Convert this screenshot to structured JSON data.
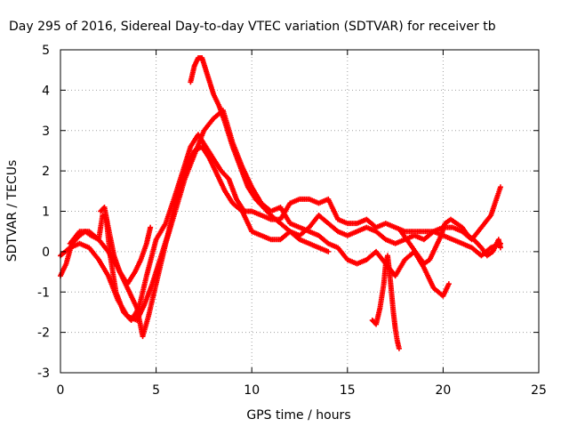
{
  "chart_data": {
    "type": "scatter",
    "title": "Day 295 of 2016, Sidereal Day-to-day VTEC variation (SDTVAR) for receiver tb",
    "xlabel": "GPS time / hours",
    "ylabel": "SDTVAR / TECUs",
    "xlim": [
      0,
      25
    ],
    "ylim": [
      -3,
      5
    ],
    "xticks": [
      "0",
      "5",
      "10",
      "15",
      "20",
      "25"
    ],
    "yticks": [
      "-3",
      "-2",
      "-1",
      "0",
      "1",
      "2",
      "3",
      "4",
      "5"
    ],
    "grid": true,
    "marker": "+",
    "color": "#ff0000",
    "series": [
      {
        "x": [
          0.0,
          0.3,
          0.6,
          1.0,
          1.3,
          1.6,
          2.0,
          2.2,
          2.4,
          2.6,
          2.9,
          3.3,
          3.7,
          4.1,
          4.5,
          5.0,
          5.5,
          6.0,
          6.4,
          6.8,
          7.2,
          7.6,
          8.0,
          8.4,
          8.8,
          9.2,
          9.6,
          10.0,
          10.5,
          11.0,
          11.5,
          12.0,
          12.5,
          13.0,
          13.5,
          14.0,
          14.5,
          15.0,
          15.5,
          16.0,
          16.5,
          17.0,
          17.5,
          18.0,
          18.5,
          19.0,
          19.5,
          20.0,
          20.5,
          21.0,
          21.5,
          22.0,
          22.5,
          23.0
        ],
        "y": [
          -0.6,
          -0.3,
          0.2,
          0.4,
          0.5,
          0.4,
          0.3,
          0.9,
          0.8,
          -0.1,
          -1.0,
          -1.5,
          -1.7,
          -1.4,
          -0.6,
          0.3,
          0.7,
          1.4,
          2.0,
          2.6,
          2.9,
          2.6,
          2.3,
          2.0,
          1.8,
          1.3,
          1.0,
          1.0,
          0.9,
          0.8,
          0.8,
          1.2,
          1.3,
          1.3,
          1.2,
          1.3,
          0.8,
          0.7,
          0.7,
          0.8,
          0.6,
          0.7,
          0.6,
          0.5,
          0.5,
          0.5,
          0.5,
          0.6,
          0.6,
          0.5,
          0.3,
          0.6,
          0.9,
          1.6
        ]
      },
      {
        "x": [
          0.0,
          0.5,
          1.0,
          1.5,
          2.0,
          2.5,
          3.0,
          3.5,
          4.0,
          4.4,
          4.8,
          5.2,
          5.6,
          6.0,
          6.5,
          7.0,
          7.4,
          7.8,
          8.2,
          8.6,
          9.0,
          9.5,
          10.0,
          10.5,
          11.0,
          11.5,
          12.0,
          12.5,
          13.0,
          13.5,
          14.0,
          14.5,
          15.0,
          15.5,
          16.0,
          16.5,
          17.0,
          17.5,
          18.0,
          18.5,
          19.0,
          19.5,
          20.0,
          20.5,
          21.0,
          21.5,
          22.0,
          22.5,
          23.0
        ],
        "y": [
          -0.1,
          0.1,
          0.2,
          0.1,
          -0.2,
          -0.6,
          -1.2,
          -1.6,
          -1.7,
          -1.3,
          -0.8,
          -0.2,
          0.4,
          1.2,
          2.0,
          2.5,
          2.6,
          2.3,
          1.9,
          1.5,
          1.2,
          1.0,
          0.5,
          0.4,
          0.3,
          0.3,
          0.5,
          0.4,
          0.6,
          0.9,
          0.7,
          0.5,
          0.4,
          0.5,
          0.6,
          0.5,
          0.3,
          0.2,
          0.3,
          0.4,
          0.3,
          0.5,
          0.4,
          0.3,
          0.2,
          0.1,
          -0.1,
          0.1,
          0.2
        ]
      },
      {
        "x": [
          0.5,
          1.0,
          1.5,
          2.0,
          2.5,
          3.0,
          3.5,
          4.0,
          4.3,
          4.6,
          5.0,
          5.5,
          6.0,
          6.5,
          7.0,
          7.5,
          8.0,
          8.5,
          9.0,
          9.5,
          10.0,
          10.5,
          11.0,
          11.5,
          12.0,
          12.5,
          13.0,
          13.5,
          14.0,
          14.5,
          15.0,
          15.5,
          16.0,
          16.5,
          17.0,
          17.5,
          18.0,
          18.5,
          19.0,
          19.5,
          20.0,
          20.3
        ],
        "y": [
          0.2,
          0.5,
          0.5,
          0.3,
          0.0,
          -0.4,
          -0.9,
          -1.4,
          -2.1,
          -1.6,
          -0.8,
          0.2,
          1.0,
          1.8,
          2.4,
          3.0,
          3.3,
          3.5,
          2.7,
          2.1,
          1.6,
          1.2,
          1.0,
          1.1,
          0.7,
          0.6,
          0.5,
          0.4,
          0.2,
          0.1,
          -0.2,
          -0.3,
          -0.2,
          0.0,
          -0.3,
          -0.6,
          -0.2,
          0.0,
          -0.4,
          -0.9,
          -1.1,
          -0.8
        ]
      },
      {
        "x": [
          6.8,
          7.0,
          7.2,
          7.4,
          7.6,
          7.8,
          8.0,
          8.3,
          8.6,
          9.0,
          9.4,
          9.8,
          10.2,
          10.6,
          11.0,
          11.5,
          12.0,
          12.5,
          13.0,
          13.5,
          14.0
        ],
        "y": [
          4.2,
          4.6,
          4.8,
          4.8,
          4.5,
          4.2,
          3.9,
          3.6,
          3.2,
          2.6,
          2.1,
          1.6,
          1.3,
          1.1,
          0.9,
          0.7,
          0.5,
          0.3,
          0.2,
          0.1,
          0.0
        ]
      },
      {
        "x": [
          16.3,
          16.5,
          16.7,
          16.9,
          17.0,
          17.1,
          17.2,
          17.3,
          17.4,
          17.5,
          17.6,
          17.7
        ],
        "y": [
          -1.7,
          -1.8,
          -1.4,
          -0.8,
          -0.3,
          -0.1,
          -0.5,
          -1.0,
          -1.5,
          -1.9,
          -2.2,
          -2.4
        ]
      },
      {
        "x": [
          2.1,
          2.3,
          2.5,
          2.8,
          3.1,
          3.5,
          3.9,
          4.2,
          4.5,
          4.7
        ],
        "y": [
          1.0,
          1.1,
          0.6,
          -0.1,
          -0.5,
          -0.8,
          -0.5,
          -0.2,
          0.2,
          0.6
        ]
      },
      {
        "x": [
          17.8,
          18.1,
          18.4,
          18.7,
          19.0,
          19.3,
          19.6,
          19.9,
          20.1,
          20.4,
          20.7,
          21.0,
          21.3,
          21.6,
          22.0,
          22.3,
          22.6,
          22.9,
          23.0
        ],
        "y": [
          0.5,
          0.3,
          0.1,
          -0.1,
          -0.3,
          -0.2,
          0.1,
          0.4,
          0.7,
          0.8,
          0.7,
          0.6,
          0.4,
          0.3,
          0.1,
          -0.1,
          0.0,
          0.3,
          0.1
        ]
      }
    ]
  }
}
